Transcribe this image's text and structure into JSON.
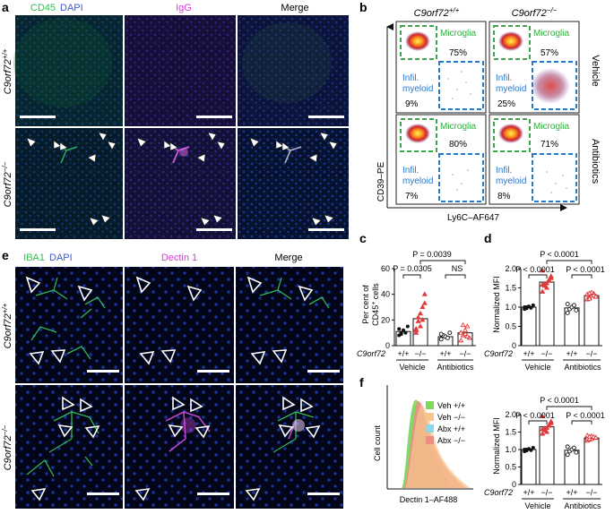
{
  "colors": {
    "green": "#2fbf4f",
    "blue": "#3b5bd9",
    "magenta": "#e04ae8",
    "gate_green": "#3aa84a",
    "gate_blue": "#2a76c8",
    "red": "#e23a3a"
  },
  "panel_labels": {
    "a": "a",
    "b": "b",
    "c": "c",
    "d": "d",
    "e": "e",
    "f": "f"
  },
  "panel_a": {
    "col1_green": "CD45",
    "col1_blue": "DAPI",
    "col2": "IgG",
    "col3": "Merge",
    "row1_gene": "C9orf72",
    "row1_sup": "+/+",
    "row2_gene": "C9orf72",
    "row2_sup": "−/−"
  },
  "panel_b": {
    "col1_gene": "C9orf72",
    "col1_sup": "+/+",
    "col2_gene": "C9orf72",
    "col2_sup": "−/−",
    "row1": "Vehicle",
    "row2": "Antibiotics",
    "y_axis": "CD39–PE",
    "x_axis": "Ly6C–AF647",
    "microglia": "Microglia",
    "infil_1": "Infil.",
    "infil_2": "myeloid",
    "pct_veh_wt_mg": "75%",
    "pct_veh_wt_inf": "9%",
    "pct_veh_ko_mg": "57%",
    "pct_veh_ko_inf": "25%",
    "pct_abx_wt_mg": "80%",
    "pct_abx_wt_inf": "7%",
    "pct_abx_ko_mg": "71%",
    "pct_abx_ko_inf": "8%"
  },
  "panel_c": {
    "ylabel_1": "Per cent of",
    "ylabel_2": "CD45",
    "ylabel_2_sup": "+",
    "ylabel_2_end": " cells",
    "p_top": "P = 0.0039",
    "p_left": "P = 0.0305",
    "ns": "NS",
    "y_ticks": [
      "0",
      "20",
      "40",
      "60"
    ]
  },
  "panel_d": {
    "ylabel": "Normalized MFI",
    "p_top": "P < 0.0001",
    "p_left": "P < 0.0001",
    "p_right": "P < 0.0001",
    "y_ticks": [
      "0",
      "0.5",
      "1.0",
      "1.5",
      "2.0"
    ]
  },
  "panel_e": {
    "col1_green": "IBA1",
    "col1_blue": "DAPI",
    "col2": "Dectin 1",
    "col3": "Merge",
    "row1_gene": "C9orf72",
    "row1_sup": "+/+",
    "row2_gene": "C9orf72",
    "row2_sup": "−/−"
  },
  "panel_f": {
    "hist_ylabel": "Cell count",
    "hist_xlabel": "Dectin 1–AF488",
    "legend": [
      "Veh +/+",
      "Veh −/−",
      "Abx +/+",
      "Abx −/−"
    ],
    "legend_colors": [
      "#7ed957",
      "#f7c48a",
      "#8ad8ee",
      "#f28a8a"
    ],
    "ylabel": "Normalized MFI",
    "p_top": "P < 0.0001",
    "p_left": "P < 0.0001",
    "p_right": "P < 0.0001",
    "y_ticks": [
      "0",
      "0.5",
      "1.0",
      "1.5",
      "2.0"
    ]
  },
  "genotype_axis": {
    "gene": "C9orf72",
    "labels": [
      "+/+",
      "−/−",
      "+/+",
      "−/−"
    ],
    "group1": "Vehicle",
    "group2": "Antibiotics"
  },
  "chart_data": [
    {
      "type": "bar",
      "panel": "c",
      "title": "",
      "ylabel": "Per cent of CD45+ cells",
      "categories": [
        "Vehicle +/+",
        "Vehicle −/−",
        "Antibiotics +/+",
        "Antibiotics −/−"
      ],
      "values": [
        11,
        21,
        7,
        10
      ],
      "points": [
        [
          8,
          10,
          12,
          10,
          15,
          13,
          9
        ],
        [
          13,
          19,
          25,
          30,
          40,
          10,
          22,
          15,
          20,
          33,
          12
        ],
        [
          5,
          8,
          7,
          6,
          10,
          9
        ],
        [
          4,
          8,
          12,
          15,
          6,
          10,
          16,
          9,
          7
        ]
      ],
      "ylim": [
        0,
        60
      ]
    },
    {
      "type": "bar",
      "panel": "d",
      "title": "",
      "ylabel": "Normalized MFI",
      "categories": [
        "Vehicle +/+",
        "Vehicle −/−",
        "Antibiotics +/+",
        "Antibiotics −/−"
      ],
      "values": [
        1.0,
        1.65,
        0.98,
        1.3
      ],
      "points": [
        [
          0.95,
          1.0,
          1.02,
          0.98,
          1.05,
          1.0,
          0.97
        ],
        [
          1.4,
          1.55,
          1.62,
          1.7,
          1.8,
          1.95,
          1.6,
          1.5,
          1.68,
          1.75,
          1.58
        ],
        [
          0.85,
          0.95,
          1.0,
          1.05,
          0.92,
          1.08
        ],
        [
          1.2,
          1.25,
          1.3,
          1.35,
          1.28,
          1.32,
          1.22,
          1.38,
          1.3,
          1.27,
          1.33,
          1.36
        ]
      ],
      "ylim": [
        0,
        2.0
      ]
    },
    {
      "type": "bar",
      "panel": "f",
      "title": "",
      "ylabel": "Normalized MFI",
      "categories": [
        "Vehicle +/+",
        "Vehicle −/−",
        "Antibiotics +/+",
        "Antibiotics −/−"
      ],
      "values": [
        1.0,
        1.65,
        0.98,
        1.33
      ],
      "points": [
        [
          0.95,
          1.0,
          1.02,
          0.98,
          1.05,
          1.0,
          0.97
        ],
        [
          1.45,
          1.55,
          1.62,
          1.7,
          1.8,
          1.95,
          1.6,
          1.5,
          1.68,
          1.75,
          1.58
        ],
        [
          0.85,
          0.95,
          1.0,
          1.05,
          0.92,
          1.08
        ],
        [
          1.25,
          1.28,
          1.3,
          1.35,
          1.33,
          1.32,
          1.3,
          1.38,
          1.36,
          1.34,
          1.4,
          1.37
        ]
      ],
      "ylim": [
        0,
        2.0
      ]
    }
  ]
}
